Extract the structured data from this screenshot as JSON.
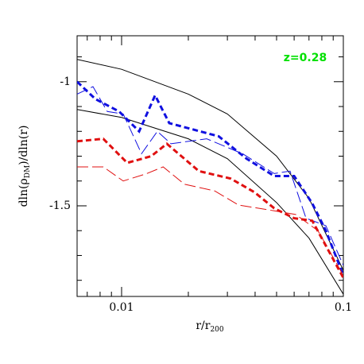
{
  "chart_data": {
    "type": "line",
    "annotation": {
      "text": "z=0.28",
      "color": "#00e000"
    },
    "xlabel": [
      "r/r",
      "200"
    ],
    "ylabel": [
      "dln(ρ",
      "DM",
      ")/dln(r)"
    ],
    "xlog": true,
    "xlim": [
      0.0063,
      0.1
    ],
    "ylim": [
      -1.865,
      -0.815
    ],
    "xticks": [
      0.01,
      0.1
    ],
    "yticks": [
      -1,
      -1.5
    ],
    "xminorticks": [
      0.007,
      0.008,
      0.009,
      0.02,
      0.03,
      0.04,
      0.05,
      0.06,
      0.07,
      0.08,
      0.09
    ],
    "yminorticks": [
      -0.9,
      -1.1,
      -1.2,
      -1.3,
      -1.4,
      -1.6,
      -1.7,
      -1.8
    ],
    "series": [
      {
        "color": "#000000",
        "width": 1,
        "dash": "none",
        "x": [
          0.0063,
          0.01,
          0.02,
          0.03,
          0.05,
          0.07,
          0.1
        ],
        "values": [
          -0.91,
          -0.95,
          -1.05,
          -1.13,
          -1.3,
          -1.47,
          -1.76
        ]
      },
      {
        "color": "#000000",
        "width": 1,
        "dash": "none",
        "x": [
          0.0063,
          0.01,
          0.02,
          0.03,
          0.05,
          0.07,
          0.1
        ],
        "values": [
          -1.112,
          -1.144,
          -1.23,
          -1.31,
          -1.487,
          -1.63,
          -1.856
        ]
      },
      {
        "color": "#1010e0",
        "width": 3,
        "dash": "7,4",
        "x": [
          0.0063,
          0.00762,
          0.00975,
          0.012,
          0.01416,
          0.01641,
          0.0205,
          0.0274,
          0.0366,
          0.0488,
          0.06,
          0.0724,
          0.0834,
          0.1
        ],
        "values": [
          -1.0,
          -1.07,
          -1.12,
          -1.2,
          -1.055,
          -1.167,
          -1.19,
          -1.22,
          -1.31,
          -1.38,
          -1.38,
          -1.49,
          -1.6,
          -1.78
        ]
      },
      {
        "color": "#1010e0",
        "width": 1,
        "dash": "14,5",
        "x": [
          0.0063,
          0.00743,
          0.00862,
          0.01017,
          0.0123,
          0.0145,
          0.0167,
          0.0242,
          0.0351,
          0.0488,
          0.0575,
          0.0679,
          0.0834,
          0.1
        ],
        "values": [
          -1.05,
          -1.02,
          -1.12,
          -1.13,
          -1.29,
          -1.2,
          -1.25,
          -1.23,
          -1.29,
          -1.37,
          -1.36,
          -1.55,
          -1.58,
          -1.74
        ]
      },
      {
        "color": "#e01010",
        "width": 3,
        "dash": "7,4",
        "x": [
          0.0063,
          0.00827,
          0.0106,
          0.0136,
          0.016,
          0.0223,
          0.031,
          0.0397,
          0.0488,
          0.06,
          0.0724,
          0.1
        ],
        "values": [
          -1.24,
          -1.23,
          -1.327,
          -1.3,
          -1.25,
          -1.36,
          -1.39,
          -1.445,
          -1.51,
          -1.55,
          -1.56,
          -1.79
        ]
      },
      {
        "color": "#e01010",
        "width": 1,
        "dash": "14,5",
        "x": [
          0.0063,
          0.00827,
          0.01017,
          0.013,
          0.0154,
          0.0192,
          0.0263,
          0.0337,
          0.0488,
          0.061,
          0.0768,
          0.1
        ],
        "values": [
          -1.343,
          -1.343,
          -1.4,
          -1.37,
          -1.343,
          -1.413,
          -1.44,
          -1.497,
          -1.52,
          -1.535,
          -1.6,
          -1.78
        ]
      }
    ]
  }
}
